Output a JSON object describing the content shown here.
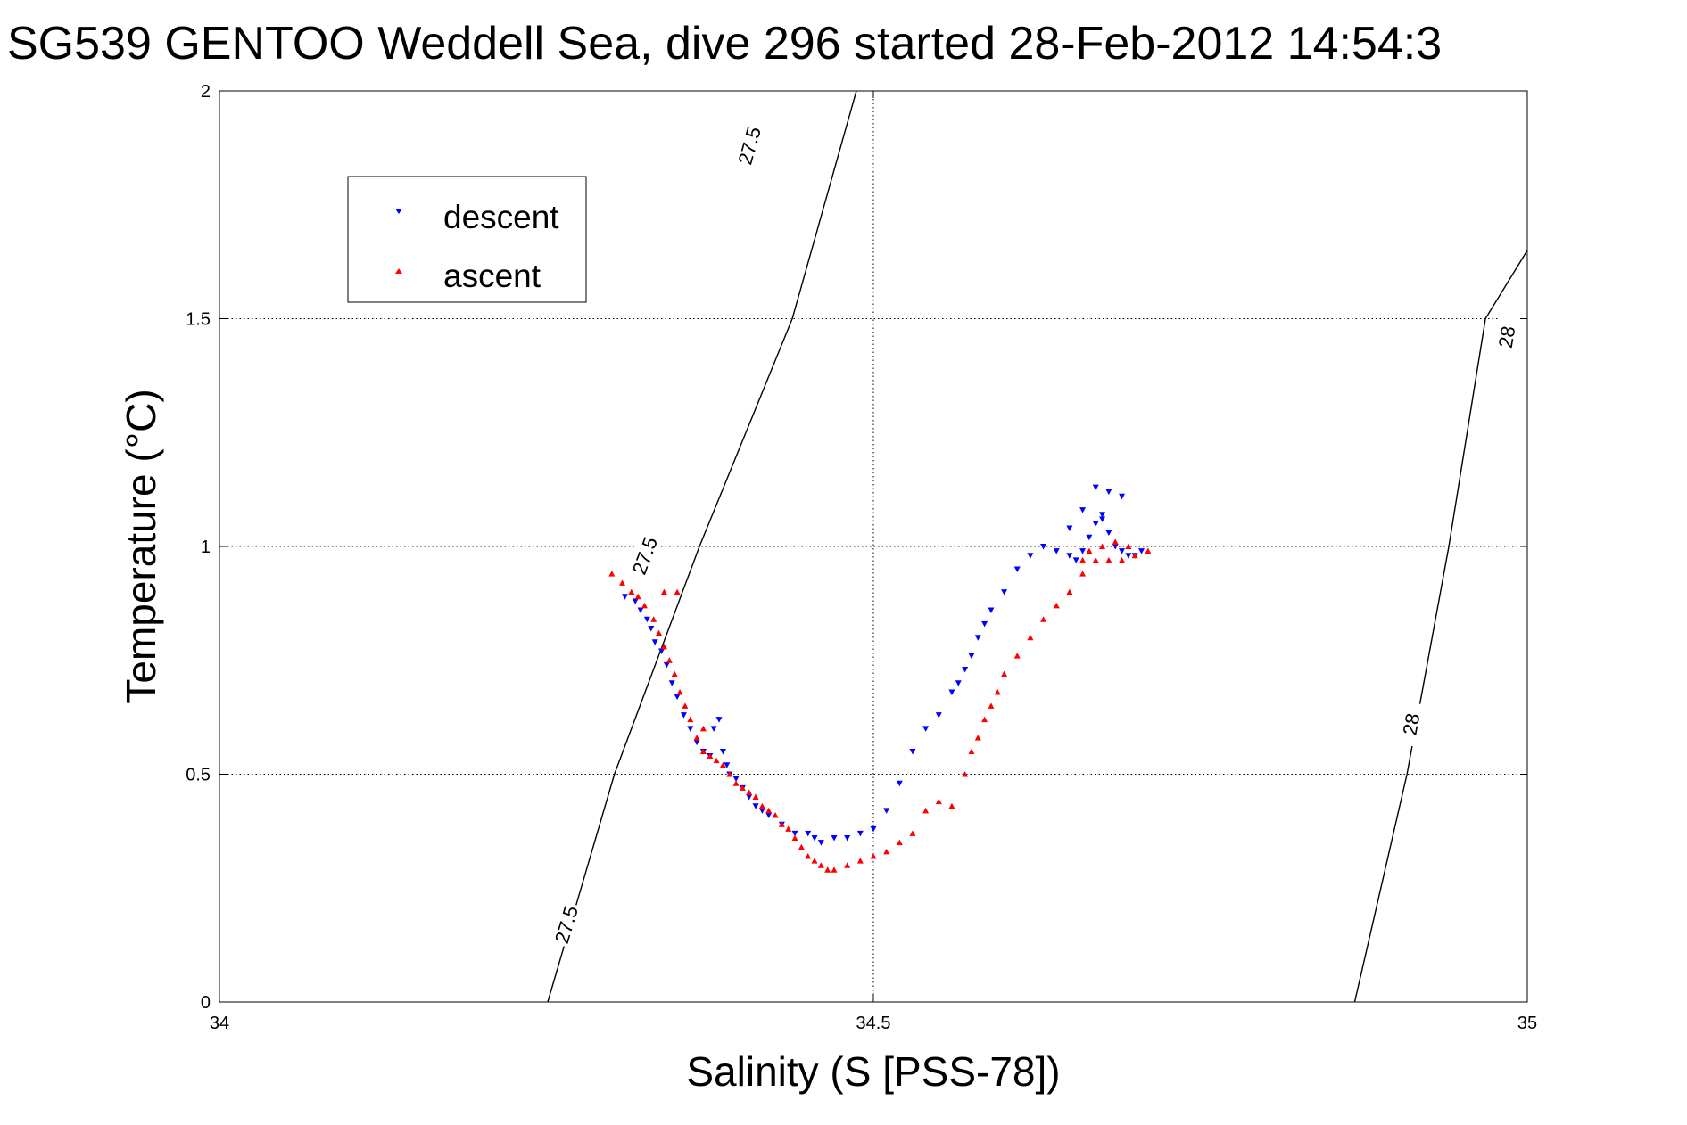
{
  "chart_data": {
    "type": "scatter",
    "title": "SG539 GENTOO Weddell Sea, dive 296 started 28-Feb-2012 14:54:3",
    "xlabel": "Salinity (S [PSS-78])",
    "ylabel": "Temperature (°C)",
    "xlim": [
      34,
      35
    ],
    "ylim": [
      0,
      2
    ],
    "xticks": [
      34,
      34.5,
      35
    ],
    "xtick_labels": [
      "34",
      "34.5",
      "35"
    ],
    "yticks": [
      0,
      0.5,
      1,
      1.5,
      2
    ],
    "ytick_labels": [
      "0",
      "0.5",
      "1",
      "1.5",
      "2"
    ],
    "grid": true,
    "legend_placement": "top-left",
    "contours": [
      {
        "level_label": "27.5",
        "points": [
          [
            34.251,
            0.0
          ],
          [
            34.302,
            0.5
          ],
          [
            34.367,
            1.0
          ],
          [
            34.438,
            1.5
          ],
          [
            34.487,
            2.0
          ]
        ],
        "labels_at": [
          [
            34.265,
            0.17
          ],
          [
            34.325,
            0.98
          ],
          [
            34.405,
            1.88
          ]
        ]
      },
      {
        "level_label": "28",
        "points": [
          [
            34.868,
            0.0
          ],
          [
            34.908,
            0.5
          ],
          [
            34.94,
            1.0
          ],
          [
            34.968,
            1.5
          ],
          [
            35.0,
            1.65
          ]
        ],
        "labels_at": [
          [
            34.911,
            0.61
          ],
          [
            34.984,
            1.46
          ]
        ]
      }
    ],
    "series": [
      {
        "name": "descent",
        "color": "#0000ff",
        "marker": "triangle-down",
        "x": [
          34.31,
          34.318,
          34.322,
          34.327,
          34.33,
          34.333,
          34.338,
          34.342,
          34.346,
          34.35,
          34.355,
          34.36,
          34.365,
          34.37,
          34.375,
          34.378,
          34.382,
          34.385,
          34.388,
          34.39,
          34.395,
          34.4,
          34.405,
          34.41,
          34.415,
          34.42,
          34.43,
          34.44,
          34.45,
          34.455,
          34.46,
          34.47,
          34.48,
          34.49,
          34.5,
          34.51,
          34.52,
          34.53,
          34.54,
          34.55,
          34.56,
          34.565,
          34.57,
          34.575,
          34.58,
          34.585,
          34.59,
          34.6,
          34.61,
          34.62,
          34.63,
          34.64,
          34.65,
          34.655,
          34.66,
          34.665,
          34.67,
          34.675,
          34.68,
          34.685,
          34.69,
          34.695,
          34.7,
          34.705,
          34.68,
          34.67,
          34.69,
          34.66,
          34.65,
          34.675
        ],
        "y": [
          0.89,
          0.88,
          0.86,
          0.84,
          0.82,
          0.79,
          0.77,
          0.74,
          0.7,
          0.67,
          0.63,
          0.6,
          0.57,
          0.55,
          0.54,
          0.6,
          0.62,
          0.55,
          0.52,
          0.5,
          0.49,
          0.47,
          0.45,
          0.43,
          0.42,
          0.41,
          0.39,
          0.37,
          0.37,
          0.36,
          0.35,
          0.36,
          0.36,
          0.37,
          0.38,
          0.42,
          0.48,
          0.55,
          0.6,
          0.63,
          0.68,
          0.7,
          0.73,
          0.76,
          0.8,
          0.83,
          0.86,
          0.9,
          0.95,
          0.98,
          1.0,
          0.99,
          0.98,
          0.97,
          0.99,
          1.02,
          1.05,
          1.06,
          1.03,
          1.0,
          0.99,
          0.98,
          0.98,
          0.99,
          1.12,
          1.13,
          1.11,
          1.08,
          1.04,
          1.07
        ]
      },
      {
        "name": "ascent",
        "color": "#ff0000",
        "marker": "triangle-up",
        "x": [
          34.3,
          34.308,
          34.315,
          34.32,
          34.325,
          34.332,
          34.336,
          34.34,
          34.344,
          34.348,
          34.352,
          34.356,
          34.36,
          34.365,
          34.37,
          34.375,
          34.38,
          34.385,
          34.39,
          34.395,
          34.4,
          34.405,
          34.41,
          34.415,
          34.42,
          34.425,
          34.43,
          34.435,
          34.44,
          34.445,
          34.45,
          34.455,
          34.46,
          34.465,
          34.47,
          34.48,
          34.49,
          34.5,
          34.51,
          34.52,
          34.53,
          34.54,
          34.55,
          34.56,
          34.57,
          34.575,
          34.58,
          34.585,
          34.59,
          34.595,
          34.6,
          34.61,
          34.62,
          34.63,
          34.64,
          34.65,
          34.66,
          34.67,
          34.68,
          34.69,
          34.7,
          34.71,
          34.675,
          34.685,
          34.695,
          34.66,
          34.665,
          34.34,
          34.35,
          34.37
        ],
        "y": [
          0.94,
          0.92,
          0.9,
          0.89,
          0.87,
          0.84,
          0.81,
          0.78,
          0.75,
          0.72,
          0.68,
          0.65,
          0.62,
          0.58,
          0.55,
          0.54,
          0.53,
          0.52,
          0.5,
          0.48,
          0.47,
          0.46,
          0.45,
          0.43,
          0.42,
          0.41,
          0.39,
          0.38,
          0.36,
          0.34,
          0.32,
          0.31,
          0.3,
          0.29,
          0.29,
          0.3,
          0.31,
          0.32,
          0.33,
          0.35,
          0.37,
          0.42,
          0.44,
          0.43,
          0.5,
          0.55,
          0.58,
          0.62,
          0.65,
          0.68,
          0.72,
          0.76,
          0.8,
          0.84,
          0.87,
          0.9,
          0.94,
          0.97,
          0.97,
          0.97,
          0.98,
          0.99,
          1.0,
          1.01,
          1.0,
          0.97,
          0.99,
          0.9,
          0.9,
          0.6
        ]
      }
    ]
  },
  "legend": {
    "descent_label": "descent",
    "ascent_label": "ascent"
  }
}
